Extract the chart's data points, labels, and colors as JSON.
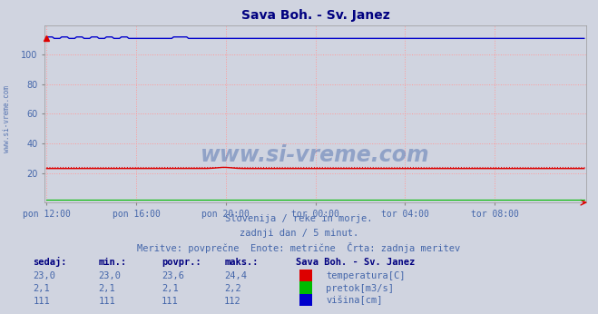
{
  "title": "Sava Boh. - Sv. Janez",
  "title_color": "#000080",
  "bg_color": "#d0d4e0",
  "plot_bg_color": "#d0d4e0",
  "x_labels": [
    "pon 12:00",
    "pon 16:00",
    "pon 20:00",
    "tor 00:00",
    "tor 04:00",
    "tor 08:00"
  ],
  "x_ticks_pos": [
    0,
    48,
    96,
    144,
    192,
    240
  ],
  "total_points": 289,
  "ylim": [
    0,
    120
  ],
  "yticks": [
    20,
    40,
    60,
    80,
    100
  ],
  "grid_color": "#ff9999",
  "temp_value": 23.0,
  "temp_dotted_value": 24.0,
  "temp_color": "#dd0000",
  "flow_value": 2.1,
  "flow_color": "#00bb00",
  "height_value": 111.0,
  "height_color": "#0000cc",
  "subtitle1": "Slovenija / reke in morje.",
  "subtitle2": "zadnji dan / 5 minut.",
  "subtitle3": "Meritve: povprečne  Enote: metrične  Črta: zadnja meritev",
  "subtitle_color": "#4466aa",
  "table_header_color": "#000080",
  "table_value_color": "#4466aa",
  "legend_station": "Sava Boh. - Sv. Janez",
  "watermark": "www.si-vreme.com",
  "watermark_color": "#4466aa",
  "left_label": "www.si-vreme.com",
  "left_label_color": "#4466aa",
  "legend_labels": [
    "temperatura[C]",
    "pretok[m3/s]",
    "višina[cm]"
  ],
  "legend_colors": [
    "#dd0000",
    "#00bb00",
    "#0000cc"
  ],
  "table_rows": [
    [
      "23,0",
      "23,0",
      "23,6",
      "24,4"
    ],
    [
      "2,1",
      "2,1",
      "2,1",
      "2,2"
    ],
    [
      "111",
      "111",
      "111",
      "112"
    ]
  ],
  "col_headers": [
    "sedaj:",
    "min.:",
    "povpr.:",
    "maks.:"
  ]
}
